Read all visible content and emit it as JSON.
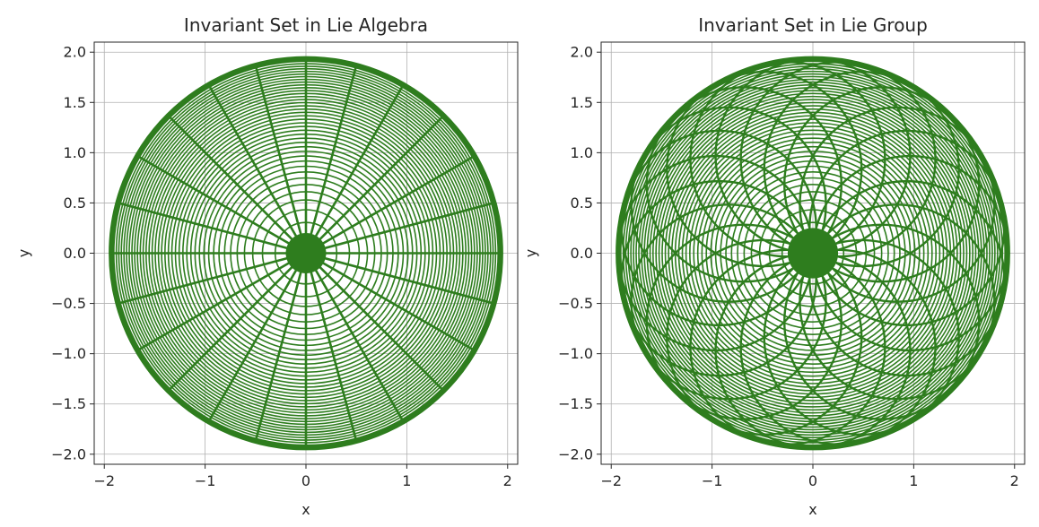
{
  "chart_data": [
    {
      "type": "line",
      "title": "Invariant Set in Lie Algebra",
      "xlabel": "x",
      "ylabel": "y",
      "xlim": [
        -2.1,
        2.1
      ],
      "ylim": [
        -2.1,
        2.1
      ],
      "xticks": [
        -2,
        -1,
        0,
        1,
        2
      ],
      "yticks": [
        -2.0,
        -1.5,
        -1.0,
        -0.5,
        0.0,
        0.5,
        1.0,
        1.5,
        2.0
      ],
      "xtick_labels": [
        "−2",
        "−1",
        "0",
        "1",
        "2"
      ],
      "ytick_labels": [
        "−2.0",
        "−1.5",
        "−1.0",
        "−0.5",
        "0.0",
        "0.5",
        "1.0",
        "1.5",
        "2.0"
      ],
      "grid": true,
      "color": "#2e7d1e",
      "geometry": "polar-web",
      "radius_max": 1.93,
      "rings": 40,
      "spokes": 24
    },
    {
      "type": "line",
      "title": "Invariant Set in Lie Group",
      "xlabel": "x",
      "ylabel": "y",
      "xlim": [
        -2.1,
        2.1
      ],
      "ylim": [
        -2.1,
        2.1
      ],
      "xticks": [
        -2,
        -1,
        0,
        1,
        2
      ],
      "yticks": [
        -2.0,
        -1.5,
        -1.0,
        -0.5,
        0.0,
        0.5,
        1.0,
        1.5,
        2.0
      ],
      "xtick_labels": [
        "−2",
        "−1",
        "0",
        "1",
        "2"
      ],
      "ytick_labels": [
        "−2.0",
        "−1.5",
        "−1.0",
        "−0.5",
        "0.0",
        "0.5",
        "1.0",
        "1.5",
        "2.0"
      ],
      "grid": true,
      "color": "#2e7d1e",
      "geometry": "rosette",
      "radius_max": 1.93,
      "rings": 40,
      "petal_circles": 24
    }
  ]
}
